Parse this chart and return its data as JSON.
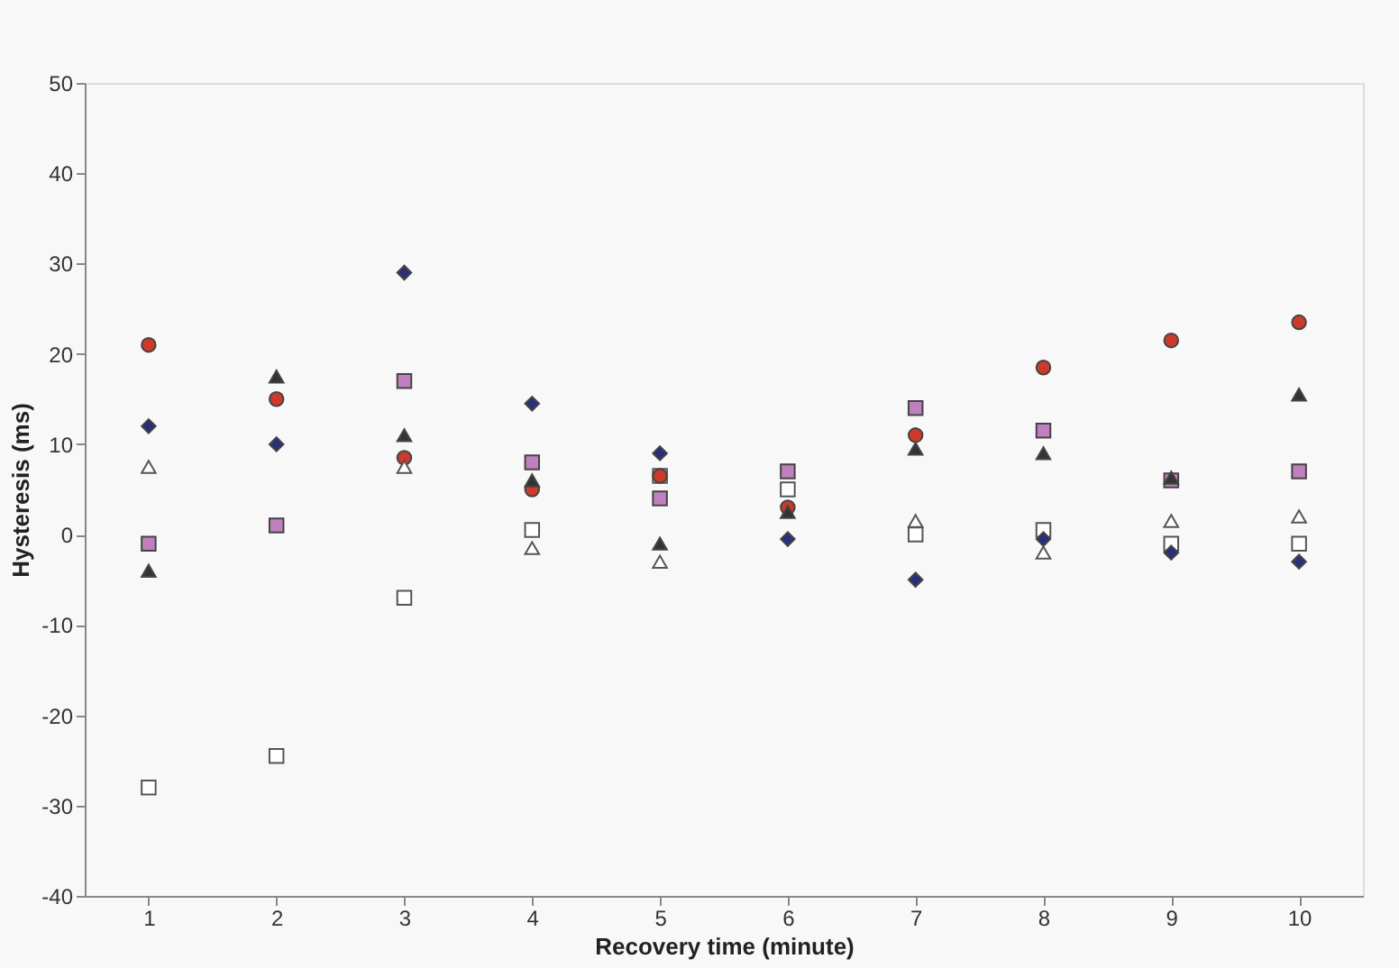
{
  "chart_data": {
    "type": "scatter",
    "xlabel": "Recovery time (minute)",
    "ylabel": "Hysteresis (ms)",
    "x": [
      1,
      2,
      3,
      4,
      5,
      6,
      7,
      8,
      9,
      10
    ],
    "xlim": [
      0.5,
      10.5
    ],
    "xticks": [
      1,
      2,
      3,
      4,
      5,
      6,
      7,
      8,
      9,
      10
    ],
    "ylim": [
      -40,
      50
    ],
    "yticks": [
      -40,
      -30,
      -20,
      -10,
      0,
      10,
      20,
      30,
      40,
      50
    ],
    "grid": false,
    "series": [
      {
        "color": "#ffffff",
        "marker": "square",
        "values": [
          -28,
          -24.5,
          -7,
          0.5,
          6.5,
          5,
          0,
          0.5,
          -1,
          -1
        ]
      },
      {
        "color": "#c080c0",
        "marker": "square",
        "values": [
          -1,
          1,
          17,
          8,
          4,
          7,
          14,
          11.5,
          6,
          7
        ]
      },
      {
        "color": "#2b2f7a",
        "marker": "diamond",
        "values": [
          12,
          10,
          29,
          14.5,
          9,
          -0.5,
          -5,
          -0.5,
          -2,
          -3
        ]
      },
      {
        "color": "#cc3a2a",
        "marker": "circle",
        "values": [
          21,
          15,
          8.5,
          5,
          6.5,
          3,
          11,
          18.5,
          21.5,
          23.5
        ]
      },
      {
        "color": "#333333",
        "marker": "triangle",
        "values": [
          -4,
          17.5,
          11,
          6,
          -1,
          2.5,
          9.5,
          9,
          6.3,
          15.5
        ]
      },
      {
        "color": "#ffffff",
        "marker": "triangle",
        "values": [
          7.5,
          null,
          7.5,
          -1.5,
          -3,
          null,
          1.5,
          -2,
          1.5,
          2
        ]
      }
    ]
  }
}
